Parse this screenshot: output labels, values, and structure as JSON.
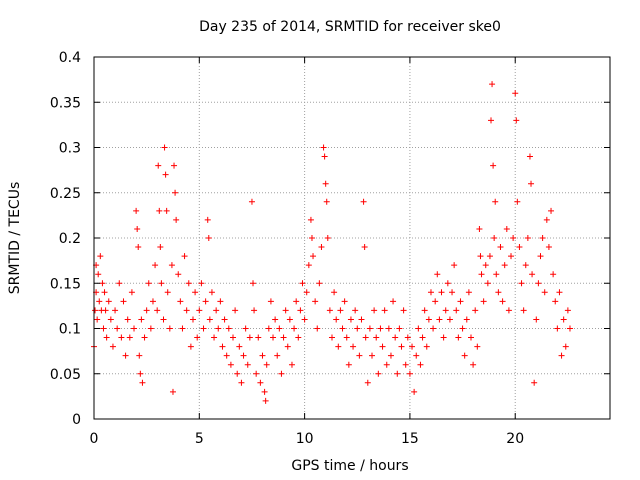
{
  "chart_data": {
    "type": "scatter",
    "title": "Day 235 of 2014, SRMTID for receiver ske0",
    "xlabel": "GPS time / hours",
    "ylabel": "SRMTID / TECUs",
    "xlim": [
      0,
      24.5
    ],
    "ylim": [
      0,
      0.4
    ],
    "xticks": [
      0,
      5,
      10,
      15,
      20
    ],
    "xtick_labels": [
      "0",
      "5",
      "10",
      "15",
      "20"
    ],
    "yticks": [
      0,
      0.05,
      0.1,
      0.15,
      0.2,
      0.25,
      0.3,
      0.35,
      0.4
    ],
    "ytick_labels": [
      "0",
      "0.05",
      "0.1",
      "0.15",
      "0.2",
      "0.25",
      "0.3",
      "0.35",
      "0.4"
    ],
    "grid": true,
    "marker": "+",
    "color": "#ff0000",
    "series": [
      {
        "name": "SRMTID",
        "points": [
          [
            0.0,
            0.08
          ],
          [
            0.05,
            0.12
          ],
          [
            0.1,
            0.17
          ],
          [
            0.1,
            0.14
          ],
          [
            0.15,
            0.11
          ],
          [
            0.2,
            0.16
          ],
          [
            0.25,
            0.13
          ],
          [
            0.3,
            0.18
          ],
          [
            0.35,
            0.12
          ],
          [
            0.4,
            0.15
          ],
          [
            0.45,
            0.1
          ],
          [
            0.5,
            0.14
          ],
          [
            0.55,
            0.12
          ],
          [
            0.6,
            0.09
          ],
          [
            0.7,
            0.13
          ],
          [
            0.8,
            0.11
          ],
          [
            0.9,
            0.08
          ],
          [
            1.0,
            0.12
          ],
          [
            1.1,
            0.1
          ],
          [
            1.2,
            0.15
          ],
          [
            1.3,
            0.09
          ],
          [
            1.4,
            0.13
          ],
          [
            1.5,
            0.07
          ],
          [
            1.6,
            0.11
          ],
          [
            1.7,
            0.09
          ],
          [
            1.8,
            0.14
          ],
          [
            1.9,
            0.1
          ],
          [
            2.0,
            0.23
          ],
          [
            2.05,
            0.21
          ],
          [
            2.1,
            0.19
          ],
          [
            2.15,
            0.07
          ],
          [
            2.2,
            0.05
          ],
          [
            2.25,
            0.11
          ],
          [
            2.3,
            0.04
          ],
          [
            2.4,
            0.09
          ],
          [
            2.5,
            0.12
          ],
          [
            2.6,
            0.15
          ],
          [
            2.7,
            0.1
          ],
          [
            2.8,
            0.13
          ],
          [
            2.9,
            0.17
          ],
          [
            3.0,
            0.12
          ],
          [
            3.05,
            0.28
          ],
          [
            3.1,
            0.23
          ],
          [
            3.15,
            0.19
          ],
          [
            3.2,
            0.15
          ],
          [
            3.3,
            0.11
          ],
          [
            3.35,
            0.3
          ],
          [
            3.4,
            0.27
          ],
          [
            3.45,
            0.23
          ],
          [
            3.5,
            0.14
          ],
          [
            3.6,
            0.1
          ],
          [
            3.7,
            0.17
          ],
          [
            3.75,
            0.03
          ],
          [
            3.8,
            0.28
          ],
          [
            3.85,
            0.25
          ],
          [
            3.9,
            0.22
          ],
          [
            4.0,
            0.16
          ],
          [
            4.1,
            0.13
          ],
          [
            4.2,
            0.1
          ],
          [
            4.3,
            0.18
          ],
          [
            4.4,
            0.12
          ],
          [
            4.5,
            0.15
          ],
          [
            4.6,
            0.08
          ],
          [
            4.7,
            0.11
          ],
          [
            4.8,
            0.14
          ],
          [
            4.9,
            0.09
          ],
          [
            5.0,
            0.12
          ],
          [
            5.1,
            0.15
          ],
          [
            5.2,
            0.1
          ],
          [
            5.3,
            0.13
          ],
          [
            5.4,
            0.22
          ],
          [
            5.45,
            0.2
          ],
          [
            5.5,
            0.11
          ],
          [
            5.6,
            0.14
          ],
          [
            5.7,
            0.09
          ],
          [
            5.8,
            0.12
          ],
          [
            5.9,
            0.1
          ],
          [
            6.0,
            0.13
          ],
          [
            6.1,
            0.08
          ],
          [
            6.2,
            0.11
          ],
          [
            6.3,
            0.07
          ],
          [
            6.4,
            0.1
          ],
          [
            6.5,
            0.06
          ],
          [
            6.6,
            0.09
          ],
          [
            6.7,
            0.12
          ],
          [
            6.8,
            0.05
          ],
          [
            6.9,
            0.08
          ],
          [
            7.0,
            0.04
          ],
          [
            7.1,
            0.07
          ],
          [
            7.2,
            0.1
          ],
          [
            7.3,
            0.06
          ],
          [
            7.4,
            0.09
          ],
          [
            7.5,
            0.24
          ],
          [
            7.55,
            0.15
          ],
          [
            7.6,
            0.12
          ],
          [
            7.7,
            0.05
          ],
          [
            7.8,
            0.09
          ],
          [
            7.9,
            0.04
          ],
          [
            8.0,
            0.07
          ],
          [
            8.1,
            0.03
          ],
          [
            8.15,
            0.02
          ],
          [
            8.2,
            0.06
          ],
          [
            8.3,
            0.1
          ],
          [
            8.4,
            0.13
          ],
          [
            8.5,
            0.09
          ],
          [
            8.6,
            0.11
          ],
          [
            8.7,
            0.07
          ],
          [
            8.8,
            0.1
          ],
          [
            8.9,
            0.05
          ],
          [
            9.0,
            0.09
          ],
          [
            9.1,
            0.12
          ],
          [
            9.2,
            0.08
          ],
          [
            9.3,
            0.11
          ],
          [
            9.4,
            0.06
          ],
          [
            9.5,
            0.1
          ],
          [
            9.6,
            0.13
          ],
          [
            9.7,
            0.09
          ],
          [
            9.8,
            0.12
          ],
          [
            9.9,
            0.15
          ],
          [
            10.0,
            0.11
          ],
          [
            10.1,
            0.14
          ],
          [
            10.2,
            0.17
          ],
          [
            10.3,
            0.22
          ],
          [
            10.35,
            0.2
          ],
          [
            10.4,
            0.18
          ],
          [
            10.5,
            0.13
          ],
          [
            10.6,
            0.1
          ],
          [
            10.7,
            0.15
          ],
          [
            10.8,
            0.19
          ],
          [
            10.9,
            0.3
          ],
          [
            10.95,
            0.29
          ],
          [
            11.0,
            0.26
          ],
          [
            11.05,
            0.24
          ],
          [
            11.1,
            0.2
          ],
          [
            11.2,
            0.12
          ],
          [
            11.3,
            0.09
          ],
          [
            11.4,
            0.14
          ],
          [
            11.5,
            0.11
          ],
          [
            11.6,
            0.08
          ],
          [
            11.7,
            0.12
          ],
          [
            11.8,
            0.1
          ],
          [
            11.9,
            0.13
          ],
          [
            12.0,
            0.09
          ],
          [
            12.1,
            0.06
          ],
          [
            12.2,
            0.11
          ],
          [
            12.3,
            0.08
          ],
          [
            12.4,
            0.12
          ],
          [
            12.5,
            0.1
          ],
          [
            12.6,
            0.07
          ],
          [
            12.7,
            0.11
          ],
          [
            12.8,
            0.24
          ],
          [
            12.85,
            0.19
          ],
          [
            12.9,
            0.09
          ],
          [
            13.0,
            0.04
          ],
          [
            13.1,
            0.1
          ],
          [
            13.2,
            0.07
          ],
          [
            13.3,
            0.12
          ],
          [
            13.4,
            0.09
          ],
          [
            13.5,
            0.05
          ],
          [
            13.6,
            0.1
          ],
          [
            13.7,
            0.08
          ],
          [
            13.8,
            0.12
          ],
          [
            13.9,
            0.06
          ],
          [
            14.0,
            0.1
          ],
          [
            14.1,
            0.07
          ],
          [
            14.2,
            0.13
          ],
          [
            14.3,
            0.09
          ],
          [
            14.4,
            0.05
          ],
          [
            14.5,
            0.1
          ],
          [
            14.6,
            0.08
          ],
          [
            14.7,
            0.12
          ],
          [
            14.8,
            0.06
          ],
          [
            14.9,
            0.09
          ],
          [
            15.0,
            0.05
          ],
          [
            15.1,
            0.08
          ],
          [
            15.2,
            0.03
          ],
          [
            15.3,
            0.07
          ],
          [
            15.4,
            0.1
          ],
          [
            15.5,
            0.06
          ],
          [
            15.6,
            0.09
          ],
          [
            15.7,
            0.12
          ],
          [
            15.8,
            0.08
          ],
          [
            15.9,
            0.11
          ],
          [
            16.0,
            0.14
          ],
          [
            16.1,
            0.1
          ],
          [
            16.2,
            0.13
          ],
          [
            16.3,
            0.16
          ],
          [
            16.4,
            0.11
          ],
          [
            16.5,
            0.14
          ],
          [
            16.6,
            0.09
          ],
          [
            16.7,
            0.12
          ],
          [
            16.8,
            0.15
          ],
          [
            16.9,
            0.11
          ],
          [
            17.0,
            0.14
          ],
          [
            17.1,
            0.17
          ],
          [
            17.2,
            0.12
          ],
          [
            17.3,
            0.09
          ],
          [
            17.4,
            0.13
          ],
          [
            17.5,
            0.1
          ],
          [
            17.6,
            0.07
          ],
          [
            17.7,
            0.11
          ],
          [
            17.8,
            0.14
          ],
          [
            17.9,
            0.09
          ],
          [
            18.0,
            0.06
          ],
          [
            18.1,
            0.12
          ],
          [
            18.2,
            0.08
          ],
          [
            18.3,
            0.21
          ],
          [
            18.35,
            0.18
          ],
          [
            18.4,
            0.16
          ],
          [
            18.5,
            0.13
          ],
          [
            18.6,
            0.17
          ],
          [
            18.7,
            0.15
          ],
          [
            18.8,
            0.18
          ],
          [
            18.85,
            0.33
          ],
          [
            18.9,
            0.37
          ],
          [
            18.95,
            0.28
          ],
          [
            19.0,
            0.2
          ],
          [
            19.05,
            0.24
          ],
          [
            19.1,
            0.16
          ],
          [
            19.2,
            0.14
          ],
          [
            19.3,
            0.19
          ],
          [
            19.4,
            0.13
          ],
          [
            19.5,
            0.17
          ],
          [
            19.6,
            0.21
          ],
          [
            19.7,
            0.12
          ],
          [
            19.8,
            0.18
          ],
          [
            19.9,
            0.2
          ],
          [
            20.0,
            0.36
          ],
          [
            20.05,
            0.33
          ],
          [
            20.1,
            0.24
          ],
          [
            20.2,
            0.19
          ],
          [
            20.3,
            0.15
          ],
          [
            20.4,
            0.12
          ],
          [
            20.5,
            0.17
          ],
          [
            20.6,
            0.2
          ],
          [
            20.7,
            0.29
          ],
          [
            20.75,
            0.26
          ],
          [
            20.8,
            0.16
          ],
          [
            20.9,
            0.04
          ],
          [
            21.0,
            0.11
          ],
          [
            21.1,
            0.15
          ],
          [
            21.2,
            0.18
          ],
          [
            21.3,
            0.2
          ],
          [
            21.4,
            0.14
          ],
          [
            21.5,
            0.22
          ],
          [
            21.6,
            0.19
          ],
          [
            21.7,
            0.23
          ],
          [
            21.8,
            0.16
          ],
          [
            21.9,
            0.13
          ],
          [
            22.0,
            0.1
          ],
          [
            22.1,
            0.14
          ],
          [
            22.2,
            0.07
          ],
          [
            22.3,
            0.11
          ],
          [
            22.4,
            0.08
          ],
          [
            22.5,
            0.12
          ],
          [
            22.6,
            0.1
          ]
        ]
      }
    ]
  }
}
